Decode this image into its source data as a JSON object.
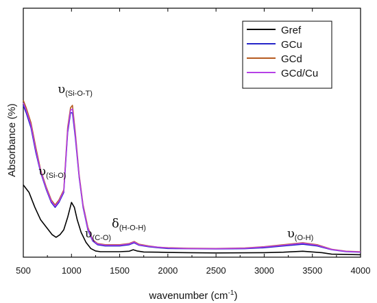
{
  "chart_data": {
    "type": "line",
    "title": "",
    "xlabel": "wavenumber (cm",
    "xlabel_sup": "-1",
    "xlabel_tail": ")",
    "ylabel": "Absorbance (%)",
    "xlim": [
      500,
      4000
    ],
    "ylim": [
      0,
      1
    ],
    "x_ticks": [
      500,
      1000,
      1500,
      2000,
      2500,
      3000,
      3500,
      4000
    ],
    "x_tick_labels": [
      "500",
      "1000",
      "1500",
      "2000",
      "2500",
      "3000",
      "3500",
      "4000"
    ],
    "legend_position": "top-right",
    "grid": false,
    "series": [
      {
        "name": "Gref",
        "color": "#000000",
        "points": [
          [
            500,
            0.29
          ],
          [
            560,
            0.26
          ],
          [
            620,
            0.2
          ],
          [
            680,
            0.15
          ],
          [
            740,
            0.12
          ],
          [
            800,
            0.09
          ],
          [
            840,
            0.08
          ],
          [
            880,
            0.09
          ],
          [
            920,
            0.11
          ],
          [
            960,
            0.16
          ],
          [
            1000,
            0.22
          ],
          [
            1030,
            0.2
          ],
          [
            1060,
            0.15
          ],
          [
            1100,
            0.1
          ],
          [
            1150,
            0.06
          ],
          [
            1200,
            0.035
          ],
          [
            1250,
            0.025
          ],
          [
            1300,
            0.022
          ],
          [
            1400,
            0.022
          ],
          [
            1500,
            0.022
          ],
          [
            1600,
            0.024
          ],
          [
            1640,
            0.03
          ],
          [
            1680,
            0.025
          ],
          [
            1750,
            0.021
          ],
          [
            1900,
            0.02
          ],
          [
            2000,
            0.019
          ],
          [
            2200,
            0.018
          ],
          [
            2500,
            0.017
          ],
          [
            3000,
            0.018
          ],
          [
            3200,
            0.02
          ],
          [
            3400,
            0.024
          ],
          [
            3600,
            0.018
          ],
          [
            3700,
            0.012
          ],
          [
            4000,
            0.01
          ]
        ]
      },
      {
        "name": "GCu",
        "color": "#2323c8",
        "points": [
          [
            500,
            0.61
          ],
          [
            530,
            0.58
          ],
          [
            580,
            0.52
          ],
          [
            630,
            0.42
          ],
          [
            680,
            0.34
          ],
          [
            740,
            0.27
          ],
          [
            790,
            0.22
          ],
          [
            830,
            0.2
          ],
          [
            870,
            0.22
          ],
          [
            920,
            0.26
          ],
          [
            960,
            0.5
          ],
          [
            990,
            0.58
          ],
          [
            1010,
            0.58
          ],
          [
            1040,
            0.48
          ],
          [
            1080,
            0.32
          ],
          [
            1120,
            0.2
          ],
          [
            1170,
            0.11
          ],
          [
            1220,
            0.065
          ],
          [
            1270,
            0.05
          ],
          [
            1350,
            0.045
          ],
          [
            1500,
            0.045
          ],
          [
            1600,
            0.05
          ],
          [
            1650,
            0.058
          ],
          [
            1700,
            0.048
          ],
          [
            1800,
            0.042
          ],
          [
            1900,
            0.038
          ],
          [
            2000,
            0.035
          ],
          [
            2200,
            0.034
          ],
          [
            2500,
            0.033
          ],
          [
            2800,
            0.034
          ],
          [
            3000,
            0.038
          ],
          [
            3200,
            0.045
          ],
          [
            3400,
            0.052
          ],
          [
            3550,
            0.045
          ],
          [
            3700,
            0.03
          ],
          [
            3850,
            0.022
          ],
          [
            4000,
            0.02
          ]
        ]
      },
      {
        "name": "GCd",
        "color": "#b55a1e",
        "points": [
          [
            500,
            0.63
          ],
          [
            530,
            0.6
          ],
          [
            580,
            0.54
          ],
          [
            630,
            0.44
          ],
          [
            680,
            0.35
          ],
          [
            740,
            0.28
          ],
          [
            790,
            0.23
          ],
          [
            830,
            0.21
          ],
          [
            870,
            0.23
          ],
          [
            920,
            0.27
          ],
          [
            960,
            0.52
          ],
          [
            990,
            0.6
          ],
          [
            1010,
            0.61
          ],
          [
            1040,
            0.5
          ],
          [
            1080,
            0.33
          ],
          [
            1120,
            0.21
          ],
          [
            1170,
            0.12
          ],
          [
            1220,
            0.07
          ],
          [
            1270,
            0.055
          ],
          [
            1350,
            0.05
          ],
          [
            1500,
            0.05
          ],
          [
            1600,
            0.055
          ],
          [
            1650,
            0.063
          ],
          [
            1700,
            0.052
          ],
          [
            1800,
            0.045
          ],
          [
            1900,
            0.04
          ],
          [
            2000,
            0.038
          ],
          [
            2200,
            0.036
          ],
          [
            2500,
            0.035
          ],
          [
            2800,
            0.037
          ],
          [
            3000,
            0.042
          ],
          [
            3200,
            0.05
          ],
          [
            3400,
            0.058
          ],
          [
            3550,
            0.05
          ],
          [
            3700,
            0.032
          ],
          [
            3850,
            0.024
          ],
          [
            4000,
            0.022
          ]
        ]
      },
      {
        "name": "GCd/Cu",
        "color": "#b53fe6",
        "points": [
          [
            500,
            0.62
          ],
          [
            530,
            0.59
          ],
          [
            580,
            0.53
          ],
          [
            630,
            0.43
          ],
          [
            680,
            0.345
          ],
          [
            740,
            0.275
          ],
          [
            790,
            0.225
          ],
          [
            830,
            0.205
          ],
          [
            870,
            0.225
          ],
          [
            920,
            0.265
          ],
          [
            960,
            0.51
          ],
          [
            990,
            0.59
          ],
          [
            1010,
            0.595
          ],
          [
            1040,
            0.49
          ],
          [
            1080,
            0.325
          ],
          [
            1120,
            0.205
          ],
          [
            1170,
            0.115
          ],
          [
            1220,
            0.068
          ],
          [
            1270,
            0.053
          ],
          [
            1350,
            0.048
          ],
          [
            1500,
            0.048
          ],
          [
            1600,
            0.053
          ],
          [
            1650,
            0.061
          ],
          [
            1700,
            0.05
          ],
          [
            1800,
            0.044
          ],
          [
            1900,
            0.04
          ],
          [
            2000,
            0.037
          ],
          [
            2200,
            0.035
          ],
          [
            2500,
            0.034
          ],
          [
            2800,
            0.036
          ],
          [
            3000,
            0.041
          ],
          [
            3200,
            0.048
          ],
          [
            3400,
            0.056
          ],
          [
            3550,
            0.048
          ],
          [
            3700,
            0.031
          ],
          [
            3850,
            0.023
          ],
          [
            4000,
            0.021
          ]
        ]
      }
    ],
    "annotations": [
      {
        "symbol": "υ",
        "sub": "(Si-O-T)",
        "x": 1000,
        "y": 0.66
      },
      {
        "symbol": "υ",
        "sub": "(Si-O)",
        "x": 800,
        "y": 0.33
      },
      {
        "symbol": "υ",
        "sub": "(C-O)",
        "x": 1280,
        "y": 0.08
      },
      {
        "symbol": "δ",
        "sub": "(H-O-H)",
        "x": 1560,
        "y": 0.12
      },
      {
        "symbol": "υ",
        "sub": "(O-H)",
        "x": 3380,
        "y": 0.08
      }
    ]
  }
}
